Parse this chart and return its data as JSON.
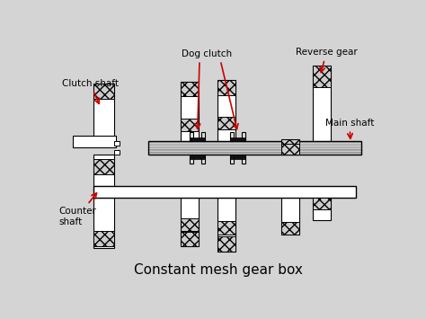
{
  "title": "Constant mesh gear box",
  "bg_color": "#d4d4d4",
  "line_color": "#000000",
  "fill_color": "#ffffff",
  "arrow_color": "#cc0000",
  "labels": {
    "clutch_shaft": "Clutch shaft",
    "dog_clutch": "Dog clutch",
    "reverse_gear": "Reverse gear",
    "main_shaft": "Main shaft",
    "counter_shaft": "Counter\nshaft"
  },
  "label_fontsize": 7.5,
  "title_fontsize": 11
}
